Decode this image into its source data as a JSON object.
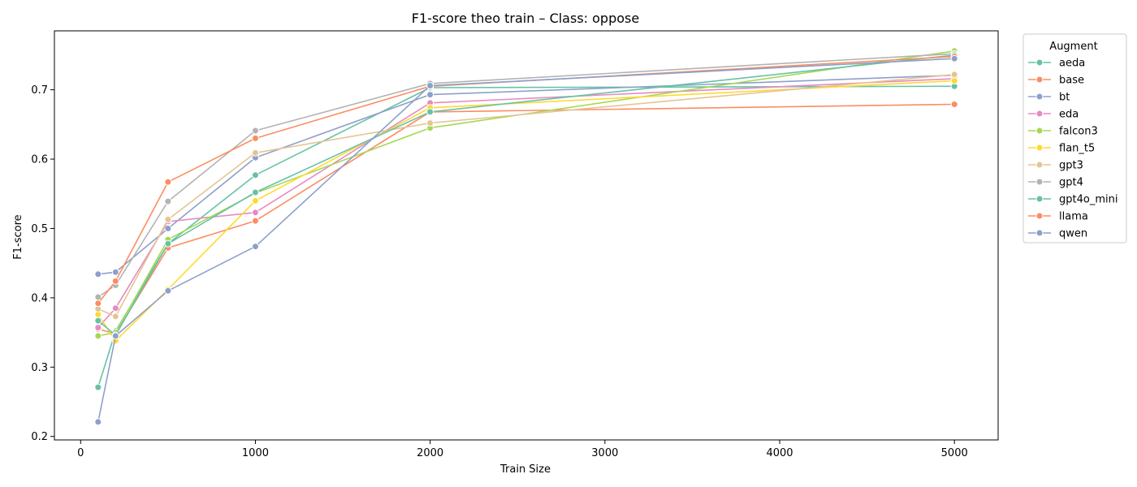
{
  "chart_data": {
    "type": "line",
    "title": "F1-score theo train – Class: oppose",
    "xlabel": "Train Size",
    "ylabel": "F1-score",
    "xlim": [
      -150,
      5250
    ],
    "ylim": [
      0.195,
      0.785
    ],
    "xticks": [
      0,
      1000,
      2000,
      3000,
      4000,
      5000
    ],
    "yticks": [
      0.2,
      0.3,
      0.4,
      0.5,
      0.6,
      0.7
    ],
    "grid": false,
    "legend": {
      "title": "Augment",
      "placement": "outside-right"
    },
    "x": [
      100,
      200,
      500,
      1000,
      2000,
      5000
    ],
    "series": [
      {
        "name": "aeda",
        "color": "#66c2a5",
        "values": [
          0.271,
          0.352,
          0.478,
          0.577,
          0.703,
          0.705
        ]
      },
      {
        "name": "base",
        "color": "#fc8d62",
        "values": [
          0.355,
          0.348,
          0.472,
          0.511,
          0.668,
          0.679
        ]
      },
      {
        "name": "bt",
        "color": "#8da0cb",
        "values": [
          0.434,
          0.437,
          0.5,
          0.602,
          0.693,
          0.721
        ]
      },
      {
        "name": "eda",
        "color": "#e78ac3",
        "values": [
          0.357,
          0.385,
          0.51,
          0.523,
          0.681,
          0.716
        ]
      },
      {
        "name": "falcon3",
        "color": "#a6d854",
        "values": [
          0.345,
          0.35,
          0.484,
          0.551,
          0.645,
          0.756
        ]
      },
      {
        "name": "flan_t5",
        "color": "#ffd92f",
        "values": [
          0.376,
          0.338,
          0.412,
          0.54,
          0.674,
          0.713
        ]
      },
      {
        "name": "gpt3",
        "color": "#e5c494",
        "values": [
          0.384,
          0.373,
          0.513,
          0.609,
          0.652,
          0.722
        ]
      },
      {
        "name": "gpt4",
        "color": "#b3b3b3",
        "values": [
          0.401,
          0.418,
          0.539,
          0.641,
          0.709,
          0.752
        ]
      },
      {
        "name": "gpt4o_mini",
        "color": "#66c2a5",
        "values": [
          0.367,
          0.346,
          0.478,
          0.552,
          0.668,
          0.75
        ]
      },
      {
        "name": "llama",
        "color": "#fc8d62",
        "values": [
          0.392,
          0.424,
          0.567,
          0.63,
          0.705,
          0.748
        ]
      },
      {
        "name": "qwen",
        "color": "#8da0cb",
        "values": [
          0.221,
          0.345,
          0.41,
          0.474,
          0.706,
          0.745
        ]
      }
    ]
  }
}
